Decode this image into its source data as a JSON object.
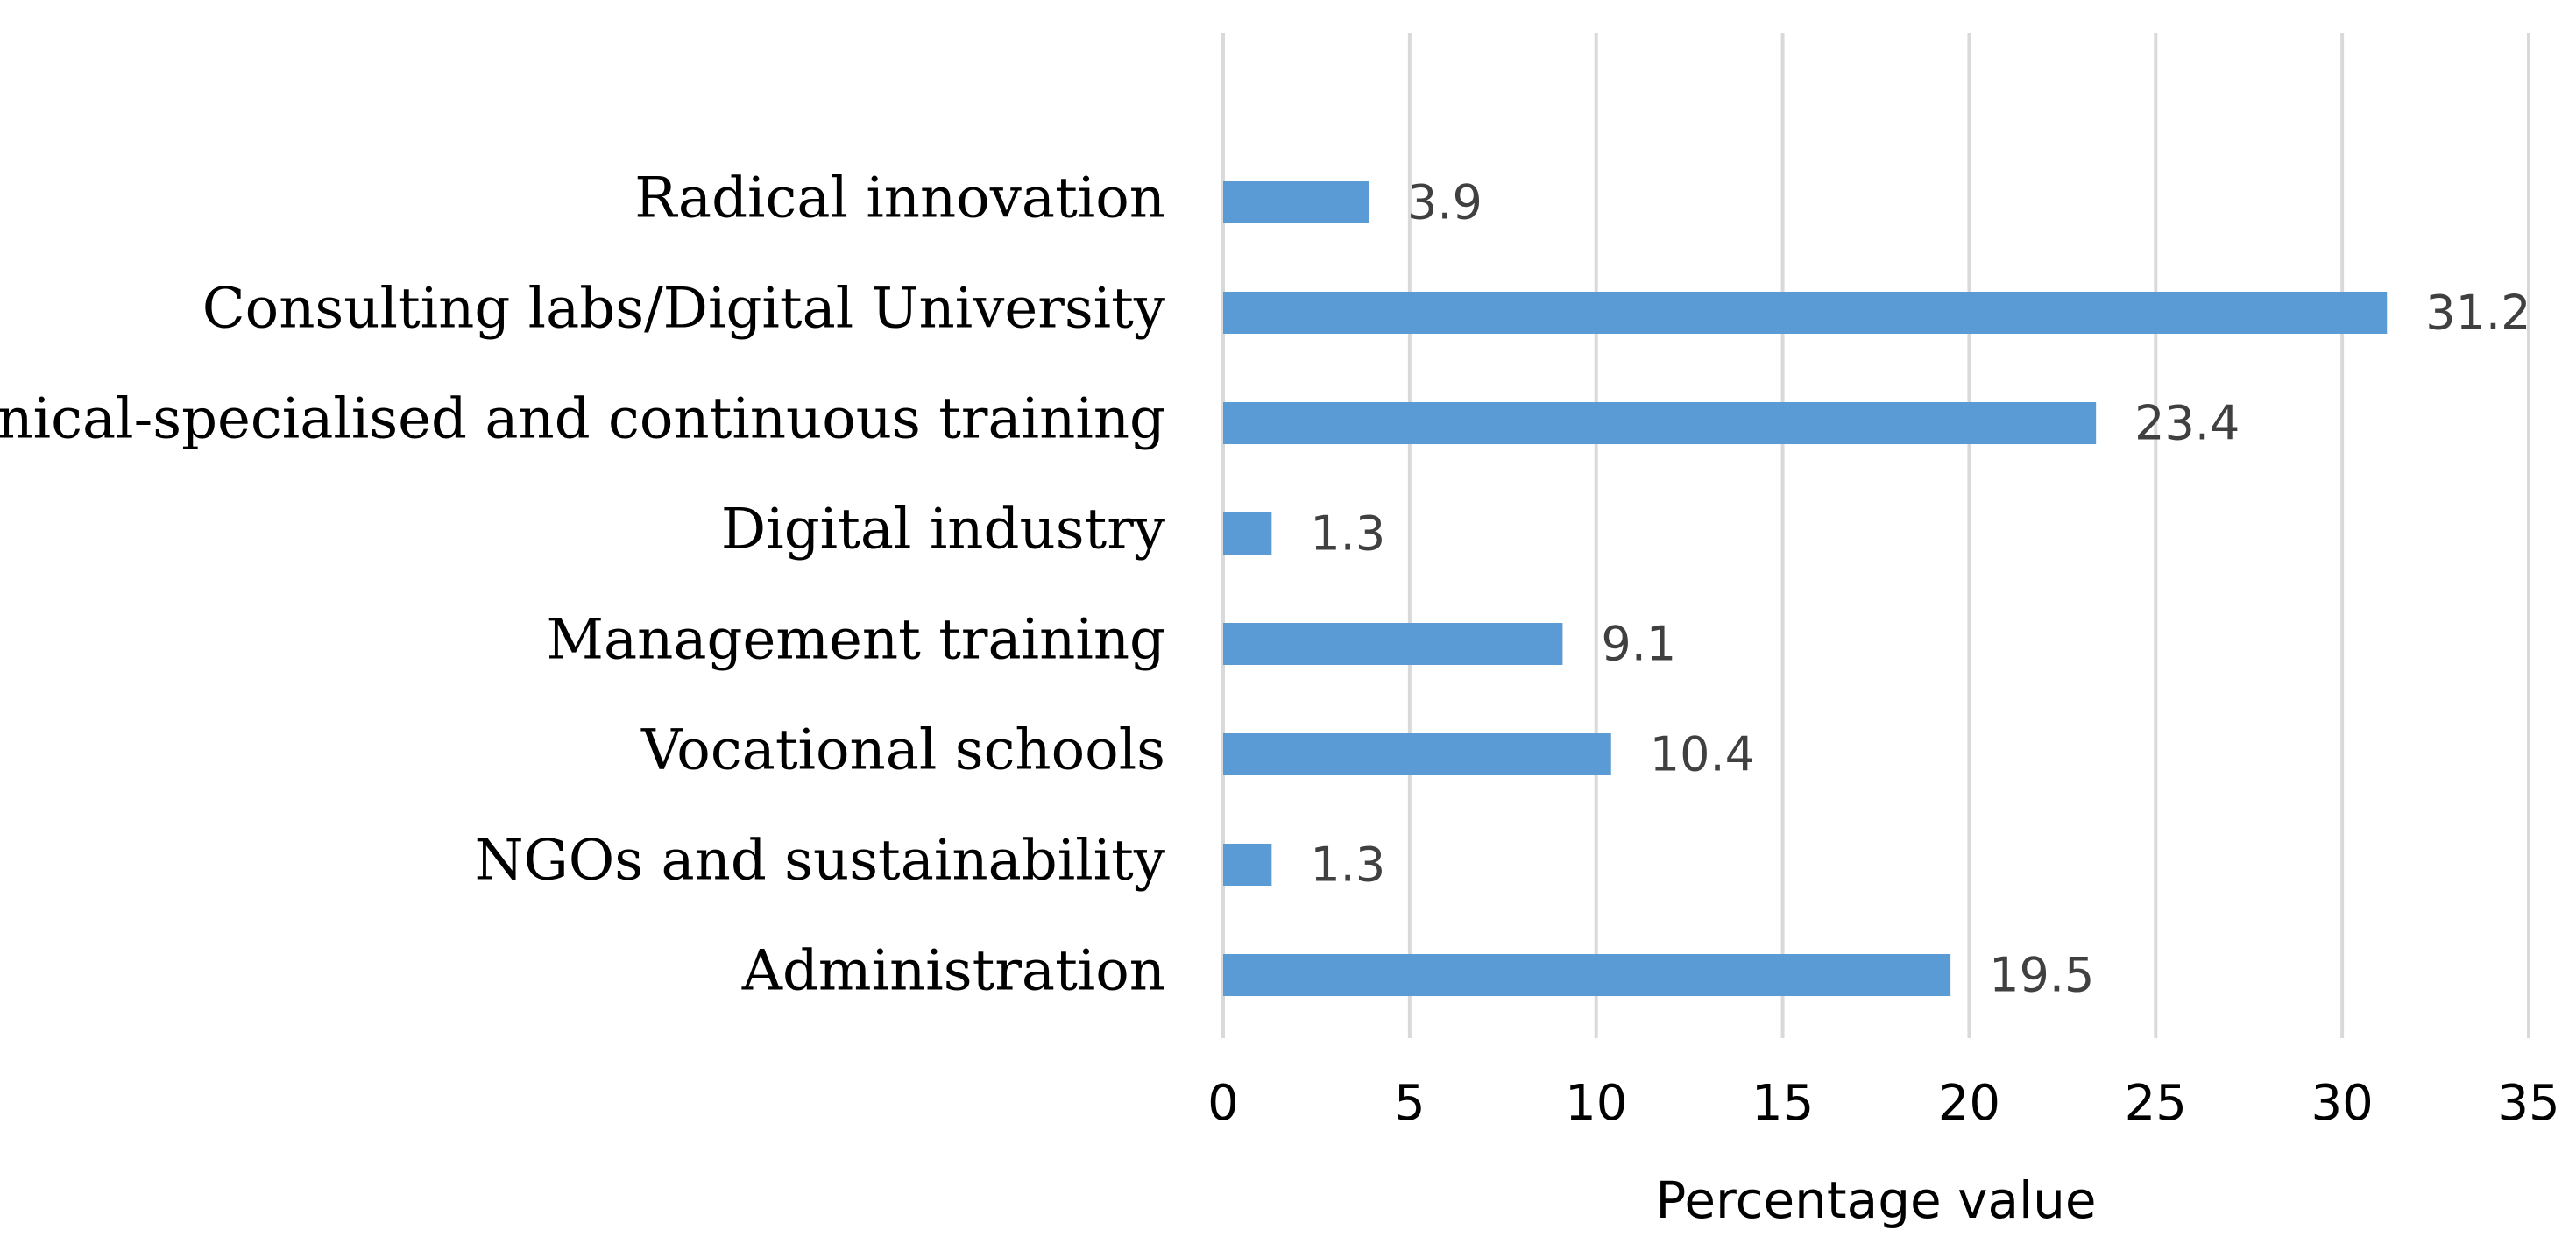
{
  "chart_data": {
    "type": "bar",
    "orientation": "horizontal",
    "categories": [
      "Radical innovation",
      "Consulting labs/Digital University",
      "Technical-specialised and continuous training",
      "Digital industry",
      "Management training",
      "Vocational schools",
      "NGOs and sustainability",
      "Administration"
    ],
    "values": [
      3.9,
      31.2,
      23.4,
      1.3,
      9.1,
      10.4,
      1.3,
      19.5
    ],
    "data_labels": [
      "3.9",
      "31.2",
      "23.4",
      "1.3",
      "9.1",
      "10.4",
      "1.3",
      "19.5"
    ],
    "xlabel": "Percentage value",
    "ylabel": "",
    "title": "",
    "xlim": [
      0,
      35
    ],
    "x_ticks": [
      "0",
      "5",
      "10",
      "15",
      "20",
      "25",
      "30",
      "35"
    ],
    "grid": "vertical",
    "legend": "none",
    "bar_color": "#5b9bd5",
    "grid_color": "#d9d9d9",
    "data_label_color": "#404040"
  }
}
